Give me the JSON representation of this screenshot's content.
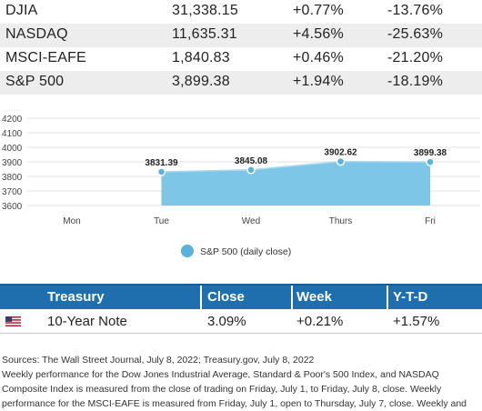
{
  "indices": [
    {
      "name": "DJIA",
      "close": "31,338.15",
      "week": "+0.77%",
      "ytd": "-13.76%"
    },
    {
      "name": "NASDAQ",
      "close": "11,635.31",
      "week": "+4.56%",
      "ytd": "-25.63%"
    },
    {
      "name": "MSCI-EAFE",
      "close": "1,840.83",
      "week": "+0.46%",
      "ytd": "-21.20%"
    },
    {
      "name": "S&P 500",
      "close": "3,899.38",
      "week": "+1.94%",
      "ytd": "-18.19%"
    }
  ],
  "chart_data": {
    "type": "area",
    "categories": [
      "Mon",
      "Tue",
      "Wed",
      "Thurs",
      "Fri"
    ],
    "series": [
      {
        "name": "S&P 500 (daily close)",
        "values": [
          null,
          3831.39,
          3845.08,
          3902.62,
          3899.38
        ]
      }
    ],
    "data_labels": [
      "3831.39",
      "3845.08",
      "3902.62",
      "3899.38"
    ],
    "yticks": [
      3600,
      3700,
      3800,
      3900,
      4000,
      4100,
      4200
    ],
    "ylim": [
      3600,
      4200
    ],
    "legend": "S&P 500 (daily close)",
    "legend_position": "bottom",
    "grid": true,
    "color": "#7ec6e8",
    "marker_color": "#5bb1dc"
  },
  "treasury": {
    "headers": [
      "Treasury",
      "Close",
      "Week",
      "Y-T-D"
    ],
    "row": {
      "flag_icon": "us-flag-icon",
      "name": "10-Year Note",
      "close": "3.09%",
      "week": "+0.21%",
      "ytd": "+1.57%"
    }
  },
  "notes": [
    "Sources: The Wall Street Journal, July 8, 2022; Treasury.gov, July 8, 2022",
    "Weekly performance for the Dow Jones Industrial Average, Standard & Poor's 500 Index, and NASDAQ",
    "Composite Index is measured from the close of trading on Friday, July 1, to Friday, July 8, close. Weekly",
    "performance for the MSCI-EAFE is measured from Friday, July 1, open to Thursday, July 7, close. Weekly and"
  ]
}
